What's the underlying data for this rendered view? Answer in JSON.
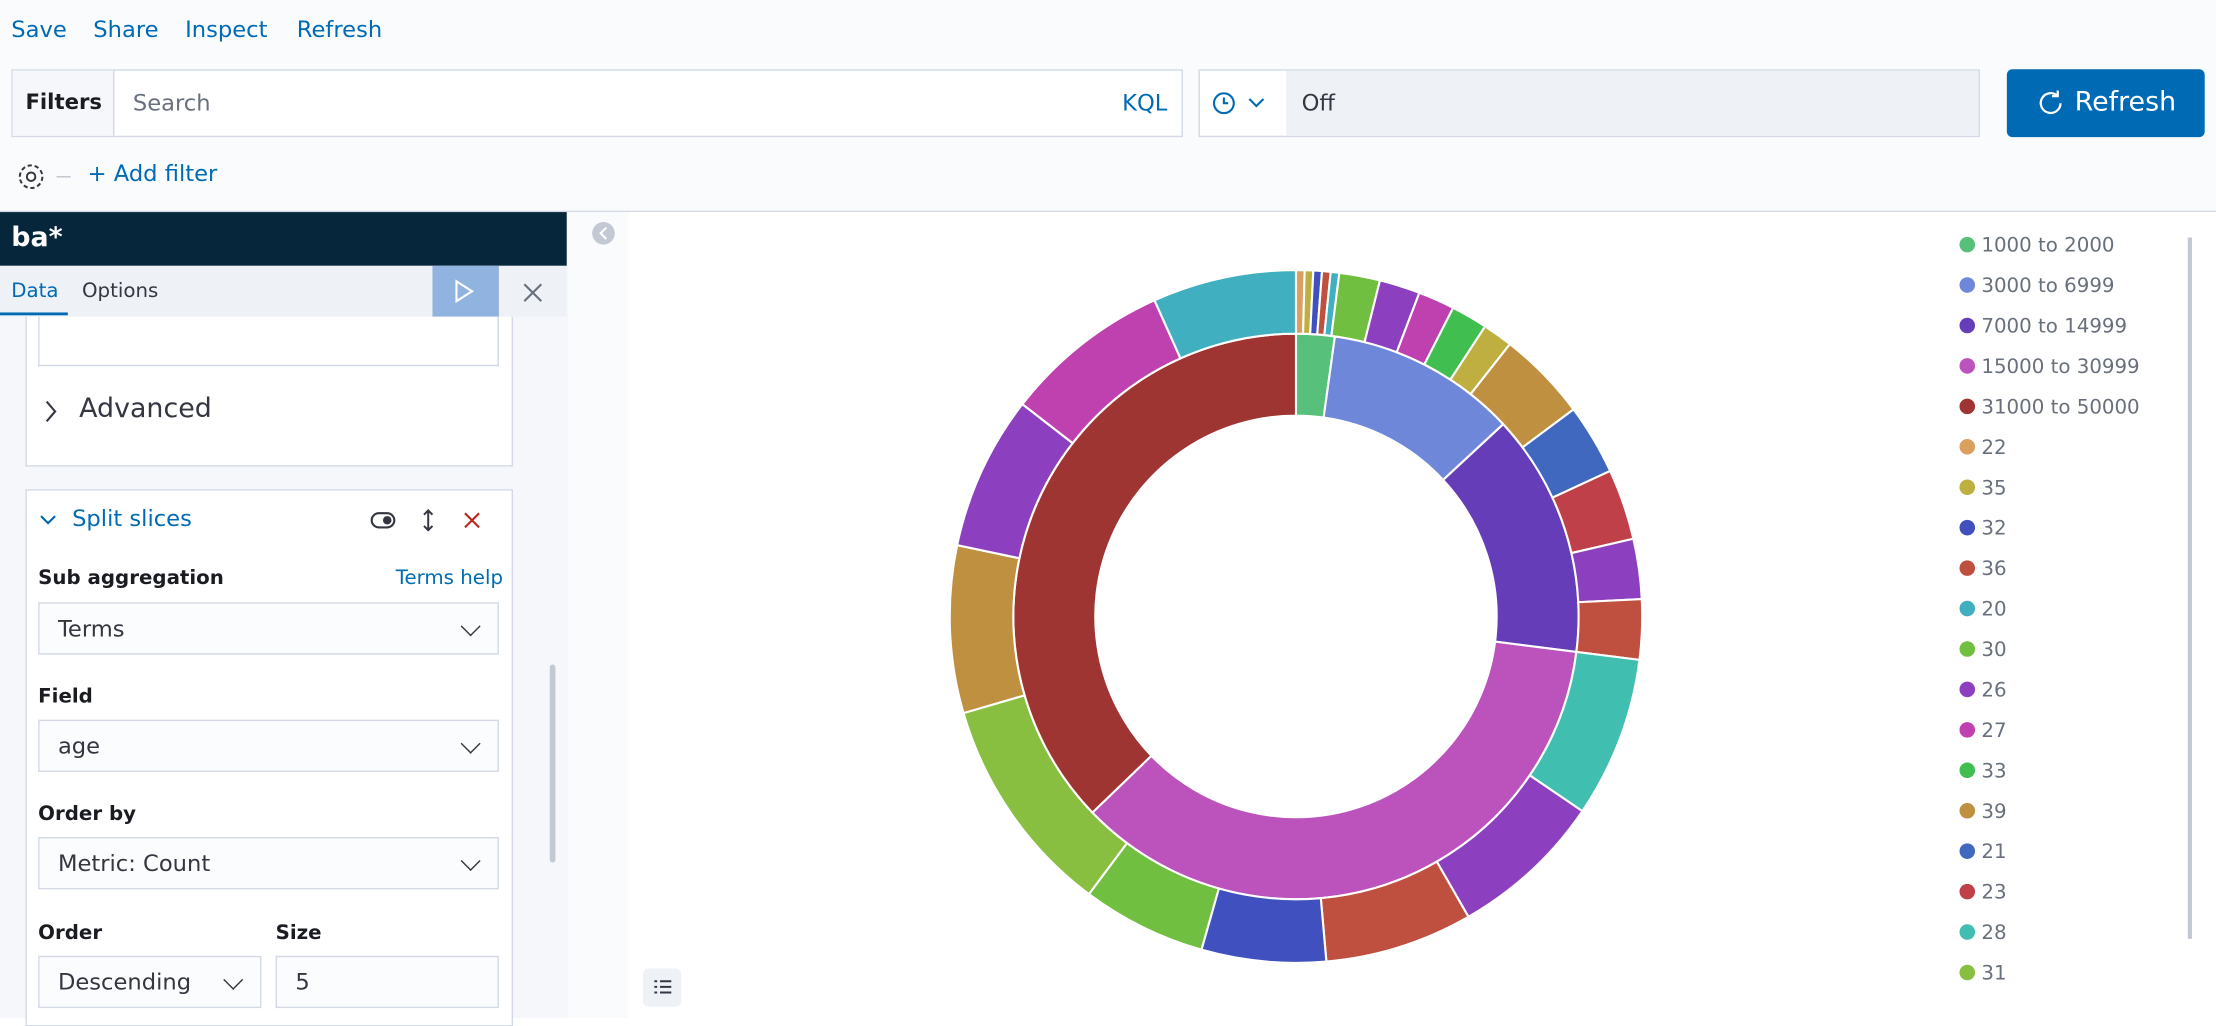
{
  "nav": {
    "links": [
      "Save",
      "Share",
      "Inspect",
      "Refresh"
    ]
  },
  "query_bar": {
    "filters_label": "Filters",
    "search_placeholder": "Search",
    "language": "KQL",
    "refresh_interval": "Off",
    "refresh_button": "Refresh",
    "add_filter": "+ Add filter"
  },
  "editor": {
    "index_pattern": "ba*",
    "tabs": [
      "Data",
      "Options"
    ],
    "advanced": "Advanced",
    "split_title": "Split slices",
    "sub_aggregation": {
      "label": "Sub aggregation",
      "help": "Terms help",
      "value": "Terms"
    },
    "field": {
      "label": "Field",
      "value": "age"
    },
    "order_by": {
      "label": "Order by",
      "value": "Metric: Count"
    },
    "order": {
      "label": "Order",
      "value": "Descending"
    },
    "size": {
      "label": "Size",
      "value": 5
    }
  },
  "chart_data": {
    "type": "donut",
    "legend": [
      {
        "name": "1000 to 2000",
        "color": "#57c17b"
      },
      {
        "name": "3000 to 6999",
        "color": "#6f87d8"
      },
      {
        "name": "7000 to 14999",
        "color": "#663db8"
      },
      {
        "name": "15000 to 30999",
        "color": "#bc52bc"
      },
      {
        "name": "31000 to 50000",
        "color": "#9e3533"
      },
      {
        "name": "22",
        "color": "#daa05d"
      },
      {
        "name": "35",
        "color": "#bfaf40"
      },
      {
        "name": "32",
        "color": "#4050bf"
      },
      {
        "name": "36",
        "color": "#bf5040"
      },
      {
        "name": "20",
        "color": "#40afbf"
      },
      {
        "name": "30",
        "color": "#70bf40"
      },
      {
        "name": "26",
        "color": "#8c40bf"
      },
      {
        "name": "27",
        "color": "#bf40af"
      },
      {
        "name": "33",
        "color": "#40bf50"
      },
      {
        "name": "39",
        "color": "#bf9040"
      },
      {
        "name": "21",
        "color": "#4068bf"
      },
      {
        "name": "23",
        "color": "#bf4048"
      },
      {
        "name": "28",
        "color": "#40bfb0"
      },
      {
        "name": "31",
        "color": "#88bf40"
      }
    ],
    "rings": [
      {
        "values": [
          2.2,
          10.9,
          13.9,
          35.8,
          37.2
        ],
        "colors": [
          "#57c17b",
          "#6f87d8",
          "#663db8",
          "#bc52bc",
          "#9e3533"
        ]
      },
      {
        "values": [
          0.4,
          0.4,
          0.4,
          0.4,
          0.4,
          1.9,
          1.9,
          1.7,
          1.7,
          1.4,
          4.2,
          3.3,
          3.3,
          2.8,
          2.8,
          7.5,
          7.2,
          6.9,
          5.8,
          5.8,
          10.3,
          7.8,
          7.2,
          7.8,
          6.7
        ],
        "colors": [
          "#daa05d",
          "#bfaf40",
          "#4050bf",
          "#bf5040",
          "#40afbf",
          "#70bf40",
          "#8c40bf",
          "#bf40af",
          "#40bf50",
          "#bfaf40",
          "#bf9040",
          "#4068bf",
          "#bf4048",
          "#8c40bf",
          "#bf5040",
          "#40bfb0",
          "#8c40bf",
          "#bf5040",
          "#4050bf",
          "#70bf40",
          "#88bf40",
          "#bf9040",
          "#8c40bf",
          "#bf40af",
          "#40afbf"
        ]
      }
    ]
  }
}
